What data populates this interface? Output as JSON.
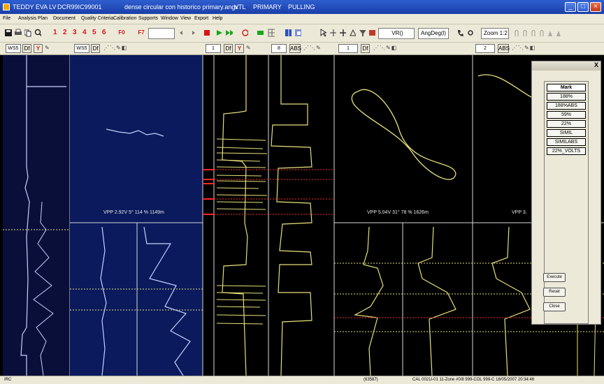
{
  "window": {
    "title_app": "TEDDY EVA LV",
    "title_doc": "DCR99IC99001",
    "title_file": "dense circular con historico primary.angx",
    "title_mode": "VTL",
    "title_stage": "PRIMARY",
    "title_state": "PULLING",
    "minimize": "_",
    "maximize": "□",
    "close": "×"
  },
  "menu": [
    "File",
    "Analysis Plan",
    "Document",
    "Quality Criteria",
    "Calibration",
    "Supports",
    "Window",
    "View",
    "Export",
    "Help"
  ],
  "toolbar": {
    "channel_numbers": [
      "1",
      "2",
      "3",
      "4",
      "5",
      "6"
    ],
    "tag_f0": "F0",
    "tag_f7": "F7",
    "vr_field": "VR()",
    "ang_select": "AngDeg(l)",
    "zoom_select": "Zoom 1:2"
  },
  "columns": [
    {
      "box": "WS5",
      "btn": "Df",
      "mode_btn": "Y"
    },
    {
      "box": "WS5",
      "btn": "Df",
      "mode_btn": ""
    },
    {
      "box": "1",
      "btn": "Df",
      "mode_btn": "Y"
    },
    {
      "box": "8",
      "btn": "ABS",
      "mode_btn": ""
    },
    {
      "box": "1",
      "btn": "Df",
      "mode_btn": ""
    },
    {
      "box": "2",
      "btn": "ABS",
      "mode_btn": ""
    }
  ],
  "plot": {
    "vpp_left": "VPP 2.92V 5° 114 % 1149m",
    "vpp_mid": "VPP 5.04V 31° 78 % 1626m",
    "vpp_right": "VPP 3.",
    "colors": {
      "background": "#000000",
      "strip_chart": "#0a0f3a",
      "blue_trace": "#c8d0ff",
      "yellow_trace": "#e8e07a",
      "red_marker": "#ff2a2a"
    }
  },
  "statusbar": {
    "left": "IRC",
    "mid": "(63587)",
    "right": "CAL 0021I-01 11-Zone #0/8 999-COL 999-C 18/05/2007 20:34:46"
  },
  "panel": {
    "close": "X",
    "list_header": "Mark",
    "list_items": [
      "188%",
      "188%ABS",
      "59%",
      "22%",
      "SIMIL",
      "SIMILABS",
      "22%_VOLTS"
    ],
    "execute": "Execute",
    "reset": "Reset",
    "close_label": "Close"
  }
}
